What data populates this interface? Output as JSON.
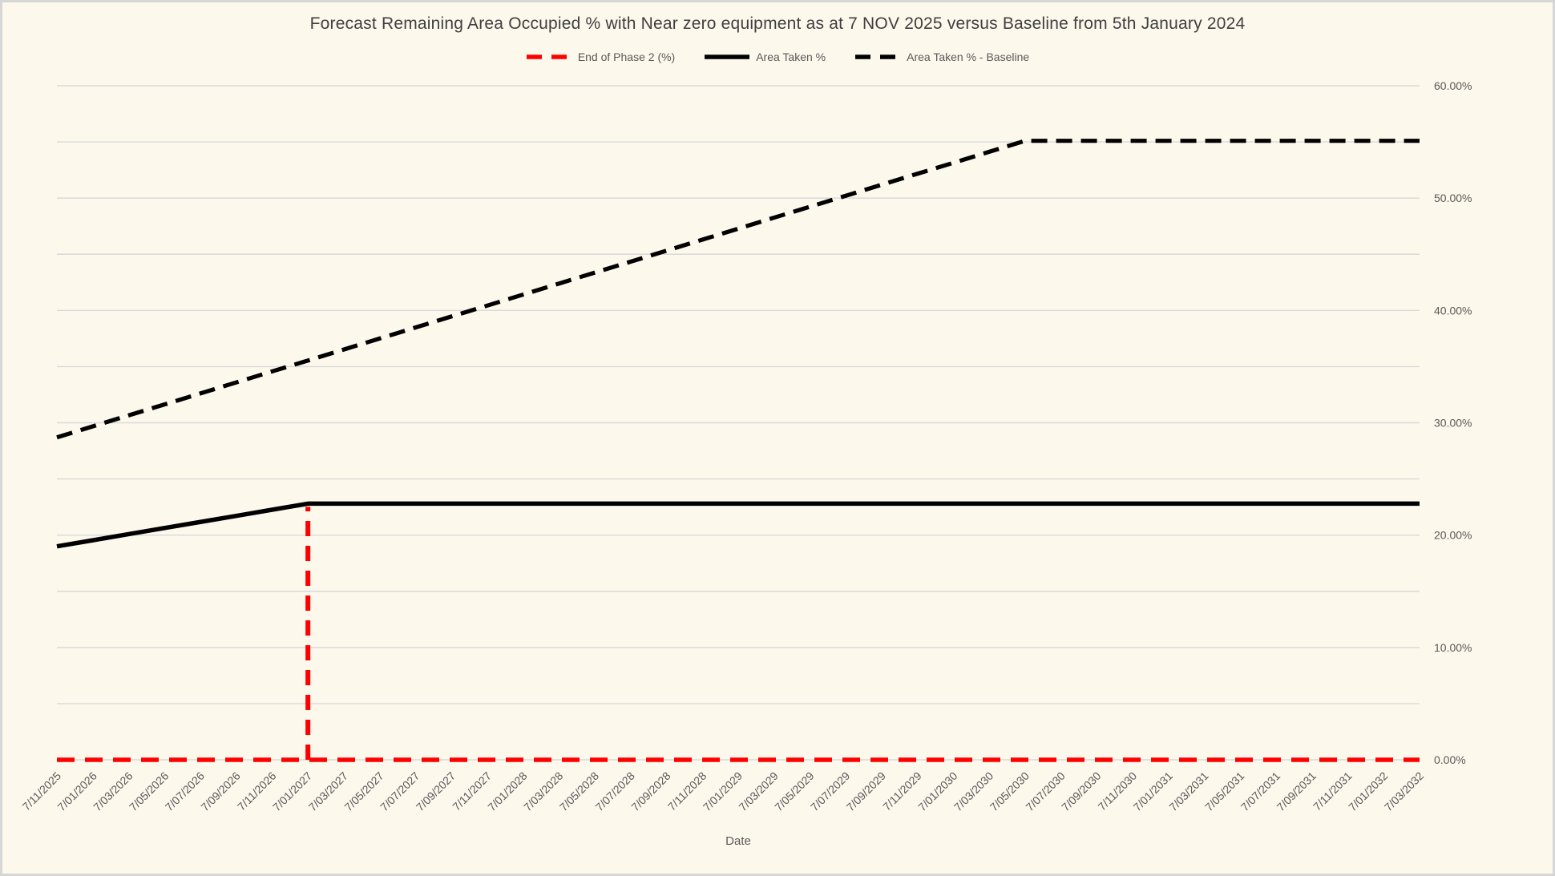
{
  "colors": {
    "background": "#FDF8EC",
    "frame_border": "#D6D6D6",
    "gridline": "#D9D9D9",
    "tick_text": "#595959",
    "title_text": "#3F3F3F",
    "phase2_red": "#FF0000",
    "series_black": "#000000"
  },
  "chart_data": {
    "type": "line",
    "title": "Forecast Remaining Area Occupied % with Near zero equipment as at 7 NOV 2025 versus Baseline from 5th January 2024",
    "xlabel": "Date",
    "ylabel": "",
    "ylim": [
      0,
      60
    ],
    "grid": "on",
    "minor_grid_step_pct": 5,
    "legend_position": "top",
    "y_ticks": [
      {
        "label": "0.00%",
        "value": 0
      },
      {
        "label": "10.00%",
        "value": 10
      },
      {
        "label": "20.00%",
        "value": 20
      },
      {
        "label": "30.00%",
        "value": 30
      },
      {
        "label": "40.00%",
        "value": 40
      },
      {
        "label": "50.00%",
        "value": 50
      },
      {
        "label": "60.00%",
        "value": 60
      }
    ],
    "categories": [
      "7/11/2025",
      "7/01/2026",
      "7/03/2026",
      "7/05/2026",
      "7/07/2026",
      "7/09/2026",
      "7/11/2026",
      "7/01/2027",
      "7/03/2027",
      "7/05/2027",
      "7/07/2027",
      "7/09/2027",
      "7/11/2027",
      "7/01/2028",
      "7/03/2028",
      "7/05/2028",
      "7/07/2028",
      "7/09/2028",
      "7/11/2028",
      "7/01/2029",
      "7/03/2029",
      "7/05/2029",
      "7/07/2029",
      "7/09/2029",
      "7/11/2029",
      "7/01/2030",
      "7/03/2030",
      "7/05/2030",
      "7/07/2030",
      "7/09/2030",
      "7/11/2030",
      "7/01/2031",
      "7/03/2031",
      "7/05/2031",
      "7/07/2031",
      "7/09/2031",
      "7/11/2031",
      "7/01/2032",
      "7/03/2032"
    ],
    "series": [
      {
        "name": "End of Phase 2 (%)",
        "color": "#FF0000",
        "style": "dashed",
        "spike_category": "7/01/2027",
        "spike_value": 22.8,
        "values": [
          0,
          0,
          0,
          0,
          0,
          0,
          0,
          0,
          0,
          0,
          0,
          0,
          0,
          0,
          0,
          0,
          0,
          0,
          0,
          0,
          0,
          0,
          0,
          0,
          0,
          0,
          0,
          0,
          0,
          0,
          0,
          0,
          0,
          0,
          0,
          0,
          0,
          0,
          0
        ]
      },
      {
        "name": "Area Taken %",
        "color": "#000000",
        "style": "solid",
        "values": [
          19.0,
          19.54,
          20.09,
          20.63,
          21.17,
          21.71,
          22.26,
          22.8,
          22.8,
          22.8,
          22.8,
          22.8,
          22.8,
          22.8,
          22.8,
          22.8,
          22.8,
          22.8,
          22.8,
          22.8,
          22.8,
          22.8,
          22.8,
          22.8,
          22.8,
          22.8,
          22.8,
          22.8,
          22.8,
          22.8,
          22.8,
          22.8,
          22.8,
          22.8,
          22.8,
          22.8,
          22.8,
          22.8,
          22.8
        ]
      },
      {
        "name": "Area Taken % - Baseline",
        "color": "#000000",
        "style": "dashed",
        "values": [
          28.7,
          29.68,
          30.66,
          31.63,
          32.61,
          33.59,
          34.57,
          35.54,
          36.52,
          37.5,
          38.48,
          39.46,
          40.43,
          41.41,
          42.39,
          43.37,
          44.34,
          45.32,
          46.3,
          47.28,
          48.26,
          49.23,
          50.21,
          51.19,
          52.17,
          53.14,
          54.12,
          55.1,
          55.1,
          55.1,
          55.1,
          55.1,
          55.1,
          55.1,
          55.1,
          55.1,
          55.1,
          55.1,
          55.1
        ]
      }
    ]
  }
}
